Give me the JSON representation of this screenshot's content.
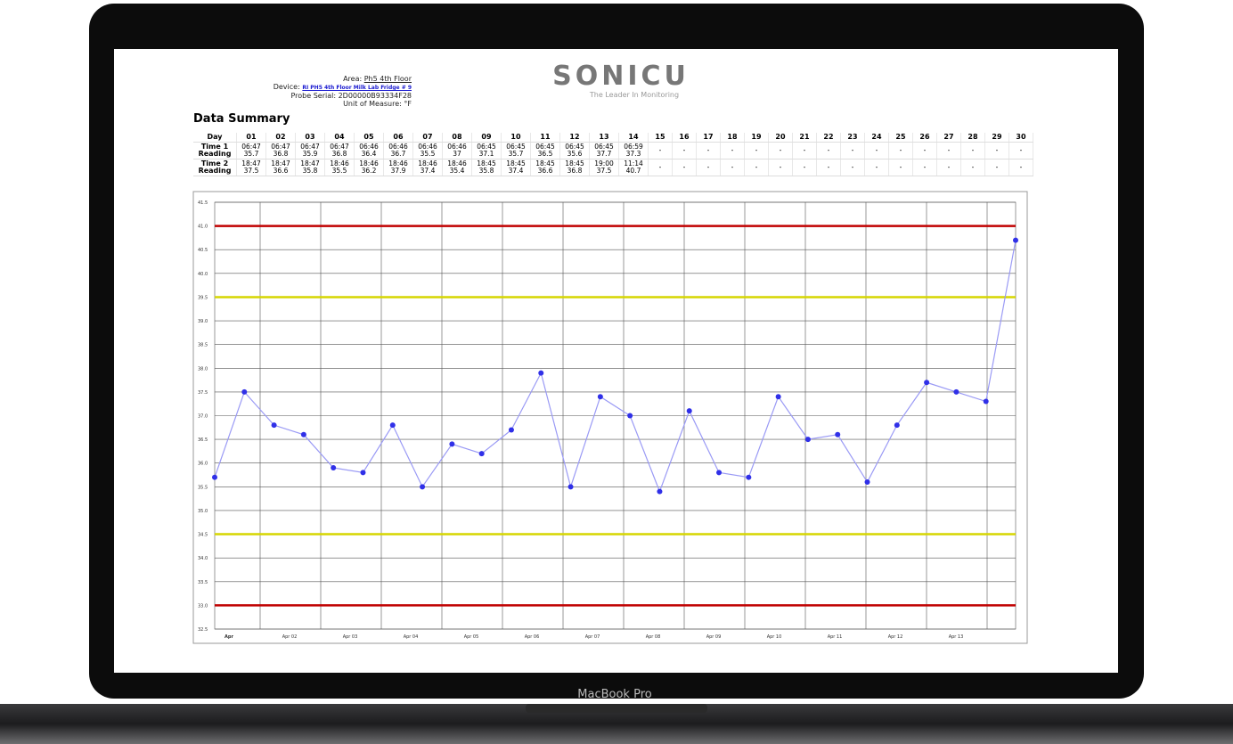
{
  "device_label": "MacBook Pro",
  "header": {
    "area_label": "Area:",
    "area": "Ph5 4th Floor",
    "device_label": "Device:",
    "device": "RI PH5 4th Floor Milk Lab Fridge # 9",
    "probe_label": "Probe Serial:",
    "probe": "2D00000B93334F28",
    "unit_label": "Unit of Measure:",
    "unit": "°F"
  },
  "logo": {
    "name": "SONICU",
    "tagline": "The Leader In Monitoring"
  },
  "section_title": "Data Summary",
  "table": {
    "header": [
      "Day",
      "01",
      "02",
      "03",
      "04",
      "05",
      "06",
      "07",
      "08",
      "09",
      "10",
      "11",
      "12",
      "13",
      "14",
      "15",
      "16",
      "17",
      "18",
      "19",
      "20",
      "21",
      "22",
      "23",
      "24",
      "25",
      "26",
      "27",
      "28",
      "29",
      "30"
    ],
    "rows": [
      {
        "label": [
          "Time 1",
          "Reading"
        ],
        "cells": [
          [
            "06:47",
            "35.7"
          ],
          [
            "06:47",
            "36.8"
          ],
          [
            "06:47",
            "35.9"
          ],
          [
            "06:47",
            "36.8"
          ],
          [
            "06:46",
            "36.4"
          ],
          [
            "06:46",
            "36.7"
          ],
          [
            "06:46",
            "35.5"
          ],
          [
            "06:46",
            "37"
          ],
          [
            "06:45",
            "37.1"
          ],
          [
            "06:45",
            "35.7"
          ],
          [
            "06:45",
            "36.5"
          ],
          [
            "06:45",
            "35.6"
          ],
          [
            "06:45",
            "37.7"
          ],
          [
            "06:59",
            "37.3"
          ],
          [
            "-"
          ],
          [
            "-"
          ],
          [
            "-"
          ],
          [
            "-"
          ],
          [
            "-"
          ],
          [
            "-"
          ],
          [
            "-"
          ],
          [
            "-"
          ],
          [
            "-"
          ],
          [
            "-"
          ],
          [
            "-"
          ],
          [
            "-"
          ],
          [
            "-"
          ],
          [
            "-"
          ],
          [
            "-"
          ],
          [
            "-"
          ]
        ]
      },
      {
        "label": [
          "Time 2",
          "Reading"
        ],
        "cells": [
          [
            "18:47",
            "37.5"
          ],
          [
            "18:47",
            "36.6"
          ],
          [
            "18:47",
            "35.8"
          ],
          [
            "18:46",
            "35.5"
          ],
          [
            "18:46",
            "36.2"
          ],
          [
            "18:46",
            "37.9"
          ],
          [
            "18:46",
            "37.4"
          ],
          [
            "18:46",
            "35.4"
          ],
          [
            "18:45",
            "35.8"
          ],
          [
            "18:45",
            "37.4"
          ],
          [
            "18:45",
            "36.6"
          ],
          [
            "18:45",
            "36.8"
          ],
          [
            "19:00",
            "37.5"
          ],
          [
            "11:14",
            "40.7"
          ],
          [
            "-"
          ],
          [
            "-"
          ],
          [
            "-"
          ],
          [
            "-"
          ],
          [
            "-"
          ],
          [
            "-"
          ],
          [
            "-"
          ],
          [
            "-"
          ],
          [
            "-"
          ],
          [
            "-"
          ],
          [
            "-"
          ],
          [
            "-"
          ],
          [
            "-"
          ],
          [
            "-"
          ],
          [
            "-"
          ],
          [
            "-"
          ]
        ]
      }
    ]
  },
  "chart_data": {
    "type": "line",
    "values": [
      35.7,
      37.5,
      36.8,
      36.6,
      35.9,
      35.8,
      36.8,
      35.5,
      36.4,
      36.2,
      36.7,
      37.9,
      35.5,
      37.4,
      37,
      35.4,
      37.1,
      35.8,
      35.7,
      37.4,
      36.5,
      36.6,
      35.6,
      36.8,
      37.7,
      37.5,
      37.3,
      40.7
    ],
    "color": "#3030e8",
    "line_color": "#9a9af5",
    "x_labels": [
      "Apr",
      "Apr 02",
      "Apr 03",
      "Apr 04",
      "Apr 05",
      "Apr 06",
      "Apr 07",
      "Apr 08",
      "Apr 09",
      "Apr 10",
      "Apr 11",
      "Apr 12",
      "Apr 13"
    ],
    "ylim": [
      32.5,
      41.5
    ],
    "yticks": [
      32.5,
      {
        "value": 33,
        "label": "33.0"
      },
      33.5,
      {
        "value": 34,
        "label": "34.0"
      },
      34.5,
      {
        "value": 35,
        "label": "35.0"
      },
      35.5,
      {
        "value": 36,
        "label": "36.0"
      },
      36.5,
      {
        "value": 37,
        "label": "37.0"
      },
      37.5,
      {
        "value": 38,
        "label": "38.0"
      },
      38.5,
      {
        "value": 39,
        "label": "39.0"
      },
      39.5,
      {
        "value": 40,
        "label": "40.0"
      },
      40.5,
      {
        "value": 41,
        "label": "41.0"
      },
      41.5
    ],
    "grid": true,
    "thresholds": [
      {
        "value": 41,
        "color": "#c00000"
      },
      {
        "value": 39.5,
        "color": "#d6d600"
      },
      {
        "value": 34.5,
        "color": "#d6d600"
      },
      {
        "value": 33,
        "color": "#c00000"
      }
    ]
  }
}
